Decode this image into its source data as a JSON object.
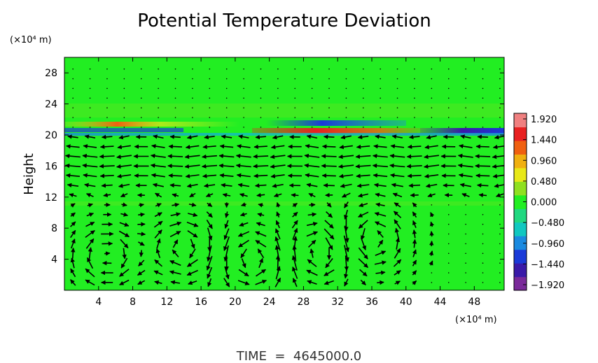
{
  "chart_data": {
    "type": "heatmap",
    "title": "Potential Temperature Deviation",
    "ylabel": "Height",
    "x_unit": "(×10⁴ m)",
    "y_unit": "(×10⁴ m)",
    "xlim": [
      0,
      51.5
    ],
    "ylim": [
      0,
      30
    ],
    "x_ticks": [
      4,
      8,
      12,
      16,
      20,
      24,
      28,
      32,
      36,
      40,
      44,
      48
    ],
    "y_ticks": [
      4,
      8,
      12,
      16,
      20,
      24,
      28
    ],
    "colorbar": {
      "range": [
        -1.92,
        1.92
      ],
      "labels": [
        "1.920",
        "1.440",
        "0.960",
        "0.480",
        "0.000",
        "−0.480",
        "−0.960",
        "−1.440",
        "−1.920"
      ],
      "colors": [
        "#7a2a9a",
        "#3a1aa8",
        "#1a3ad8",
        "#1a8ae0",
        "#10c8c0",
        "#20d880",
        "#22ee22",
        "#90e020",
        "#e8e818",
        "#f0b010",
        "#f06010",
        "#e82020",
        "#f08080"
      ]
    },
    "background_value": 0.0,
    "features": [
      {
        "y": 20.4,
        "x_range": [
          0,
          51.5
        ],
        "description": "thin layer of strong deviation",
        "min": -1.92,
        "max": 1.92
      },
      {
        "y": 21.1,
        "x_range": [
          2,
          20
        ],
        "value": 1.5
      },
      {
        "y": 20.1,
        "x_range": [
          20,
          40
        ],
        "value": 1.9
      },
      {
        "y": 21.2,
        "x_range": [
          26,
          36
        ],
        "value": -1.5
      },
      {
        "y": 20.3,
        "x_range": [
          46,
          51.5
        ],
        "value": -1.9
      }
    ],
    "vector_field": {
      "description": "wind vectors (black arrows) with circulation cells below about 12 x10^4 m",
      "cells": [
        {
          "x": 5,
          "y": 4.5,
          "rotation": "clockwise"
        },
        {
          "x": 14,
          "y": 5.5,
          "rotation": "clockwise"
        },
        {
          "x": 22,
          "y": 4,
          "rotation": "counterclockwise"
        },
        {
          "x": 30,
          "y": 5,
          "rotation": "clockwise"
        },
        {
          "x": 36,
          "y": 6.5,
          "rotation": "counterclockwise"
        }
      ]
    }
  },
  "footer": {
    "time_label": "TIME  =  4645000.0"
  }
}
